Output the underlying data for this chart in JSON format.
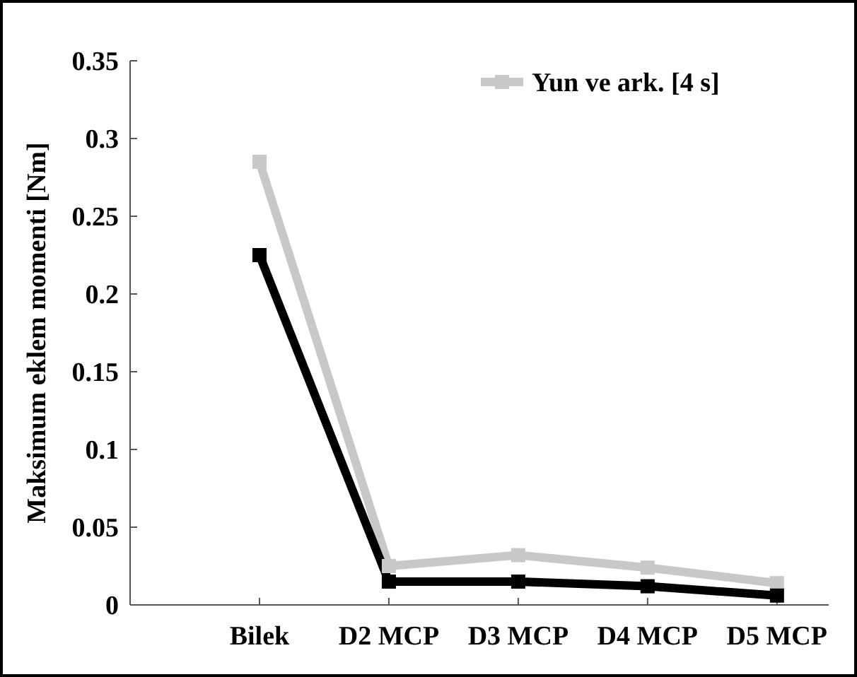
{
  "chart_data": {
    "type": "line",
    "ylabel": "Maksimum eklem momenti [Nm]",
    "categories": [
      "Bilek",
      "D2 MCP",
      "D3 MCP",
      "D4 MCP",
      "D5 MCP"
    ],
    "series": [
      {
        "name": "Yun ve ark. [4 s]",
        "color": "#c8c8c8",
        "values": [
          0.285,
          0.025,
          0.032,
          0.024,
          0.014
        ]
      },
      {
        "color": "#000000",
        "values": [
          0.225,
          0.015,
          0.015,
          0.012,
          0.006
        ]
      }
    ],
    "ylim": [
      0,
      0.35
    ],
    "yticks": [
      0,
      0.05,
      0.1,
      0.15,
      0.2,
      0.25,
      0.3,
      0.35
    ],
    "marker": "square",
    "legend": "top right",
    "grid": false
  }
}
